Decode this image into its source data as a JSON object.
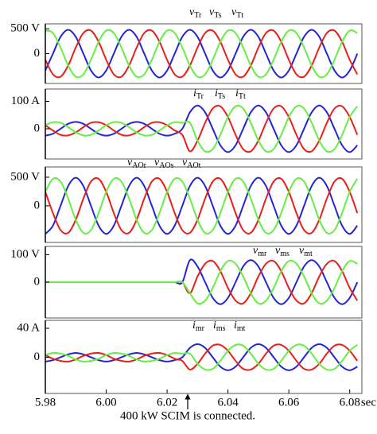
{
  "chart_data": [
    {
      "type": "line",
      "x": [
        5.98,
        5.9825,
        5.985,
        5.9875,
        5.99,
        5.9925,
        5.995,
        5.9975,
        6,
        6.0025,
        6.005,
        6.0075,
        6.01,
        6.0125,
        6.015,
        6.0175,
        6.02,
        6.0225,
        6.025,
        6.0275,
        6.03,
        6.0325,
        6.035,
        6.0375,
        6.04,
        6.0425,
        6.045,
        6.0475,
        6.05,
        6.0525,
        6.055,
        6.0575,
        6.06,
        6.0625,
        6.065,
        6.0675,
        6.07,
        6.0725,
        6.075,
        6.0775,
        6.08,
        6.0825
      ],
      "xlim": [
        5.98,
        6.084
      ],
      "ylim": [
        -600,
        600
      ],
      "yticks": [
        0,
        {
          "value": 500,
          "label": "500 V"
        }
      ],
      "series": [
        {
          "name": "vTr",
          "color": "#2424d4",
          "values": [
            -339,
            0,
            339,
            480,
            339,
            0,
            -339,
            -480,
            -339,
            0,
            339,
            480,
            339,
            0,
            -339,
            -480,
            -339,
            0,
            339,
            480,
            339,
            0,
            -339,
            -480,
            -339,
            0,
            339,
            480,
            339,
            0,
            -339,
            -480,
            -339,
            0,
            339,
            480,
            339,
            0,
            -339,
            -480,
            -339,
            0
          ]
        },
        {
          "name": "vTs",
          "color": "#e8201c",
          "values": [
            -124,
            -416,
            -464,
            -240,
            124,
            416,
            464,
            240,
            -124,
            -416,
            -464,
            -240,
            124,
            416,
            464,
            240,
            -124,
            -416,
            -464,
            -240,
            124,
            416,
            464,
            240,
            -124,
            -416,
            -464,
            -240,
            124,
            416,
            464,
            240,
            -124,
            -416,
            -464,
            -240,
            124,
            416,
            464,
            240,
            -124,
            -416
          ]
        },
        {
          "name": "vTt",
          "color": "#66ee44",
          "values": [
            464,
            416,
            124,
            -240,
            -464,
            -416,
            -124,
            240,
            464,
            416,
            124,
            -240,
            -464,
            -416,
            -124,
            240,
            464,
            416,
            124,
            -240,
            -464,
            -416,
            -124,
            240,
            464,
            416,
            124,
            -240,
            -464,
            -416,
            -124,
            240,
            464,
            416,
            124,
            -240,
            -464,
            -416,
            -124,
            240,
            464,
            416
          ]
        }
      ]
    },
    {
      "type": "line",
      "x": [
        5.98,
        5.9825,
        5.985,
        5.9875,
        5.99,
        5.9925,
        5.995,
        5.9975,
        6,
        6.0025,
        6.005,
        6.0075,
        6.01,
        6.0125,
        6.015,
        6.0175,
        6.02,
        6.0225,
        6.025,
        6.0275,
        6.03,
        6.0325,
        6.035,
        6.0375,
        6.04,
        6.0425,
        6.045,
        6.0475,
        6.05,
        6.0525,
        6.055,
        6.0575,
        6.06,
        6.0625,
        6.065,
        6.0675,
        6.07,
        6.0725,
        6.075,
        6.0775,
        6.08,
        6.0825
      ],
      "xlim": [
        5.98,
        6.084
      ],
      "ylim": [
        -110,
        145
      ],
      "yticks": [
        0,
        {
          "value": 100,
          "label": "100 A"
        }
      ],
      "series": [
        {
          "name": "iTr",
          "color": "#2424d4",
          "values": [
            -25,
            -18,
            0,
            18,
            25,
            18,
            0,
            -18,
            -25,
            -18,
            0,
            18,
            25,
            18,
            0,
            -18,
            -25,
            -18,
            0,
            60,
            85,
            60,
            0,
            -60,
            -85,
            -60,
            0,
            60,
            85,
            60,
            0,
            -60,
            -85,
            -60,
            0,
            60,
            85,
            60,
            0,
            -60,
            -85,
            -60
          ]
        },
        {
          "name": "iTs",
          "color": "#e8201c",
          "values": [
            13,
            -6,
            -22,
            -24,
            -13,
            6,
            22,
            24,
            13,
            -6,
            -22,
            -24,
            -13,
            6,
            22,
            24,
            13,
            -6,
            -22,
            -82,
            -43,
            22,
            74,
            82,
            43,
            -22,
            -74,
            -82,
            -43,
            22,
            74,
            82,
            43,
            -22,
            -74,
            -82,
            -43,
            22,
            74,
            82,
            43,
            -22
          ]
        },
        {
          "name": "iTt",
          "color": "#66ee44",
          "values": [
            13,
            24,
            22,
            6,
            -13,
            -24,
            -22,
            -6,
            13,
            24,
            22,
            6,
            -13,
            -24,
            -22,
            -6,
            13,
            24,
            22,
            22,
            -43,
            -82,
            -74,
            -22,
            43,
            82,
            74,
            22,
            -43,
            -82,
            -74,
            -22,
            43,
            82,
            74,
            22,
            -43,
            -82,
            -74,
            -22,
            43,
            82
          ]
        }
      ]
    },
    {
      "type": "line",
      "x": [
        5.98,
        5.9825,
        5.985,
        5.9875,
        5.99,
        5.9925,
        5.995,
        5.9975,
        6,
        6.0025,
        6.005,
        6.0075,
        6.01,
        6.0125,
        6.015,
        6.0175,
        6.02,
        6.0225,
        6.025,
        6.0275,
        6.03,
        6.0325,
        6.035,
        6.0375,
        6.04,
        6.0425,
        6.045,
        6.0475,
        6.05,
        6.0525,
        6.055,
        6.0575,
        6.06,
        6.0625,
        6.065,
        6.0675,
        6.07,
        6.0725,
        6.075,
        6.0775,
        6.08,
        6.0825
      ],
      "xlim": [
        5.98,
        6.084
      ],
      "ylim": [
        -640,
        680
      ],
      "yticks": [
        0,
        {
          "value": 500,
          "label": "500 V"
        }
      ],
      "series": [
        {
          "name": "vAOr",
          "color": "#2424d4",
          "values": [
            -490,
            -346,
            0,
            346,
            490,
            346,
            0,
            -346,
            -490,
            -346,
            0,
            346,
            490,
            346,
            0,
            -346,
            -490,
            -346,
            0,
            346,
            490,
            346,
            0,
            -346,
            -490,
            -346,
            0,
            346,
            490,
            346,
            0,
            -346,
            -490,
            -346,
            0,
            346,
            490,
            346,
            0,
            -346,
            -490,
            -346
          ]
        },
        {
          "name": "vAOs",
          "color": "#e8201c",
          "values": [
            245,
            -127,
            -424,
            -473,
            -245,
            127,
            424,
            473,
            245,
            -127,
            -424,
            -473,
            -245,
            127,
            424,
            473,
            245,
            -127,
            -424,
            -473,
            -245,
            127,
            424,
            473,
            245,
            -127,
            -424,
            -473,
            -245,
            127,
            424,
            473,
            245,
            -127,
            -424,
            -473,
            -245,
            127,
            424,
            473,
            245,
            -127
          ]
        },
        {
          "name": "vAOt",
          "color": "#66ee44",
          "values": [
            245,
            473,
            424,
            127,
            -245,
            -473,
            -424,
            -127,
            245,
            473,
            424,
            127,
            -245,
            -473,
            -424,
            -127,
            245,
            473,
            424,
            127,
            -245,
            -473,
            -424,
            -127,
            245,
            473,
            424,
            127,
            -245,
            -473,
            -424,
            -127,
            245,
            473,
            424,
            127,
            -245,
            -473,
            -424,
            -127,
            245,
            473
          ]
        }
      ]
    },
    {
      "type": "line",
      "x": [
        5.98,
        5.9825,
        5.985,
        5.9875,
        5.99,
        5.9925,
        5.995,
        5.9975,
        6,
        6.0025,
        6.005,
        6.0075,
        6.01,
        6.0125,
        6.015,
        6.0175,
        6.02,
        6.0225,
        6.025,
        6.0275,
        6.03,
        6.0325,
        6.035,
        6.0375,
        6.04,
        6.0425,
        6.045,
        6.0475,
        6.05,
        6.0525,
        6.055,
        6.0575,
        6.06,
        6.0625,
        6.065,
        6.0675,
        6.07,
        6.0725,
        6.075,
        6.0775,
        6.08,
        6.0825
      ],
      "xlim": [
        5.98,
        6.084
      ],
      "ylim": [
        -130,
        130
      ],
      "yticks": [
        0,
        {
          "value": 100,
          "label": "100 V"
        }
      ],
      "series": [
        {
          "name": "vmr",
          "color": "#2424d4",
          "values": [
            0,
            0,
            0,
            0,
            0,
            0,
            0,
            0,
            0,
            0,
            0,
            0,
            0,
            0,
            0,
            0,
            0,
            0,
            0,
            80,
            57,
            0,
            -57,
            -80,
            -57,
            0,
            57,
            80,
            57,
            0,
            -57,
            -80,
            -57,
            0,
            57,
            80,
            57,
            0,
            -57,
            -80,
            -57,
            0
          ]
        },
        {
          "name": "vms",
          "color": "#e8201c",
          "values": [
            0,
            0,
            0,
            0,
            0,
            0,
            0,
            0,
            0,
            0,
            0,
            0,
            0,
            0,
            0,
            0,
            0,
            0,
            0,
            -40,
            21,
            67,
            77,
            40,
            -21,
            -67,
            -77,
            -40,
            21,
            67,
            77,
            40,
            -21,
            -67,
            -77,
            -40,
            21,
            67,
            77,
            40,
            -21,
            -67
          ]
        },
        {
          "name": "vmt",
          "color": "#66ee44",
          "values": [
            0,
            0,
            0,
            0,
            0,
            0,
            0,
            0,
            0,
            0,
            0,
            0,
            0,
            0,
            0,
            0,
            0,
            0,
            0,
            -40,
            -77,
            -67,
            -21,
            40,
            77,
            67,
            21,
            -40,
            -77,
            -67,
            -21,
            40,
            77,
            67,
            21,
            -40,
            -77,
            -67,
            -21,
            40,
            77,
            67
          ]
        }
      ]
    },
    {
      "type": "line",
      "x": [
        5.98,
        5.9825,
        5.985,
        5.9875,
        5.99,
        5.9925,
        5.995,
        5.9975,
        6,
        6.0025,
        6.005,
        6.0075,
        6.01,
        6.0125,
        6.015,
        6.0175,
        6.02,
        6.0225,
        6.025,
        6.0275,
        6.03,
        6.0325,
        6.035,
        6.0375,
        6.04,
        6.0425,
        6.045,
        6.0475,
        6.05,
        6.0525,
        6.055,
        6.0575,
        6.06,
        6.0625,
        6.065,
        6.0675,
        6.07,
        6.0725,
        6.075,
        6.0775,
        6.08,
        6.0825
      ],
      "xlim": [
        5.98,
        6.084
      ],
      "ylim": [
        -50,
        51
      ],
      "yticks": [
        0,
        {
          "value": 40,
          "label": "40 A"
        }
      ],
      "xticks": [
        5.98,
        {
          "value": 6,
          "label": "6.00"
        },
        6.02,
        6.04,
        6.06,
        6.08
      ],
      "xlabel": "sec",
      "annotation": "400 kW SCIM is connected.",
      "series": [
        {
          "name": "imr",
          "color": "#2424d4",
          "values": [
            -6,
            -4,
            0,
            4,
            6,
            4,
            0,
            -4,
            -6,
            -4,
            0,
            4,
            6,
            4,
            0,
            -4,
            -6,
            -4,
            0,
            13,
            18,
            13,
            0,
            -13,
            -18,
            -13,
            0,
            13,
            18,
            13,
            0,
            -13,
            -18,
            -13,
            0,
            13,
            18,
            13,
            0,
            -13,
            -18,
            -13
          ]
        },
        {
          "name": "ims",
          "color": "#e8201c",
          "values": [
            3,
            -2,
            -5,
            -6,
            -3,
            2,
            5,
            6,
            3,
            -2,
            -5,
            -6,
            -3,
            2,
            5,
            6,
            3,
            -2,
            -5,
            -17,
            -9,
            5,
            16,
            17,
            9,
            -5,
            -16,
            -17,
            -9,
            5,
            16,
            17,
            9,
            -5,
            -16,
            -17,
            -9,
            5,
            16,
            17,
            9,
            -5
          ]
        },
        {
          "name": "imt",
          "color": "#66ee44",
          "values": [
            3,
            6,
            5,
            2,
            -3,
            -6,
            -5,
            -2,
            3,
            6,
            5,
            2,
            -3,
            -6,
            -5,
            -2,
            3,
            6,
            5,
            5,
            -9,
            -17,
            -16,
            -5,
            9,
            17,
            16,
            5,
            -9,
            -17,
            -16,
            -5,
            9,
            17,
            16,
            5,
            -9,
            -17,
            -16,
            -5,
            9,
            17
          ]
        }
      ]
    }
  ]
}
